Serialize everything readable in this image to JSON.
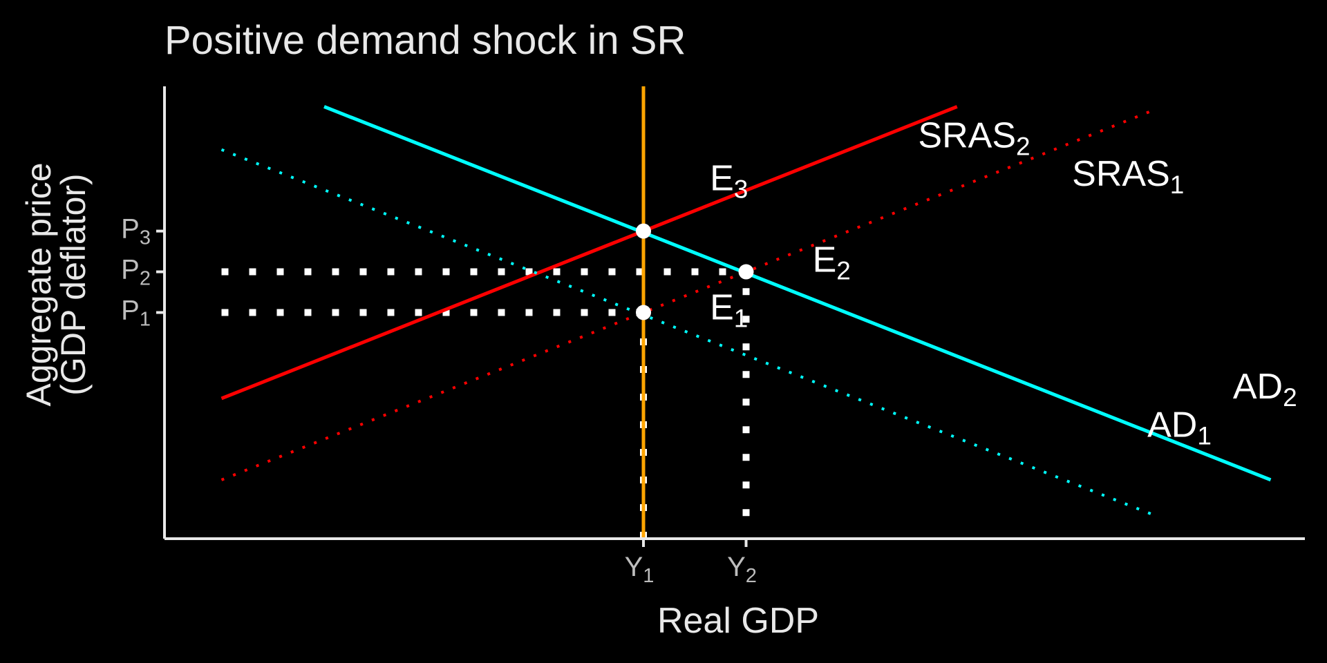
{
  "chart_data": {
    "type": "line",
    "title": "Positive demand shock in SR",
    "xlabel": "Real GDP",
    "ylabel_line1": "Aggregate price",
    "ylabel_line2": "(GDP deflator)",
    "xlim": [
      0,
      10
    ],
    "ylim": [
      0,
      10
    ],
    "grid": false,
    "legend": "none",
    "x_ticks": [
      {
        "value": 4.2,
        "base": "Y",
        "sub": "1"
      },
      {
        "value": 5.1,
        "base": "Y",
        "sub": "2"
      }
    ],
    "y_ticks": [
      {
        "value": 5.0,
        "base": "P",
        "sub": "1"
      },
      {
        "value": 5.9,
        "base": "P",
        "sub": "2"
      },
      {
        "value": 6.8,
        "base": "P",
        "sub": "3"
      }
    ],
    "series": [
      {
        "label_base": "SRAS",
        "label_sub": "1",
        "style": "dotted",
        "color": "#ff0000",
        "x": [
          0.5,
          8.7
        ],
        "y": [
          1.3,
          9.5
        ],
        "label_pos": [
          8.45,
          7.8
        ]
      },
      {
        "label_base": "SRAS",
        "label_sub": "2",
        "style": "solid",
        "color": "#ff0000",
        "x": [
          0.5,
          6.95
        ],
        "y": [
          3.1,
          9.55
        ],
        "label_pos": [
          7.1,
          8.65
        ]
      },
      {
        "label_base": "AD",
        "label_sub": "1",
        "style": "dotted",
        "color": "#00ffff",
        "x": [
          0.5,
          8.7
        ],
        "y": [
          8.6,
          0.5
        ],
        "label_pos": [
          8.9,
          2.25
        ]
      },
      {
        "label_base": "AD",
        "label_sub": "2",
        "style": "solid",
        "color": "#00ffff",
        "x": [
          1.4,
          9.7
        ],
        "y": [
          9.55,
          1.3
        ],
        "label_pos": [
          9.65,
          3.1
        ]
      },
      {
        "label_base": "",
        "label_sub": "",
        "style": "solid",
        "color": "#ffa500",
        "x": [
          4.2,
          4.2
        ],
        "y": [
          0,
          10
        ],
        "label_pos": null
      }
    ],
    "points": [
      {
        "label_base": "E",
        "label_sub": "1",
        "x": 4.2,
        "y": 5.0,
        "label_pos": [
          4.95,
          4.85
        ]
      },
      {
        "label_base": "E",
        "label_sub": "2",
        "x": 5.1,
        "y": 5.9,
        "label_pos": [
          5.85,
          5.9
        ]
      },
      {
        "label_base": "E",
        "label_sub": "3",
        "x": 4.2,
        "y": 6.8,
        "label_pos": [
          4.95,
          7.7
        ]
      }
    ],
    "guides": [
      {
        "x": [
          0.5,
          4.2
        ],
        "y": [
          5.0,
          5.0
        ]
      },
      {
        "x": [
          0.5,
          5.1
        ],
        "y": [
          5.9,
          5.9
        ]
      },
      {
        "x": [
          4.2,
          4.2
        ],
        "y": [
          0,
          5.0
        ]
      },
      {
        "x": [
          5.1,
          5.1
        ],
        "y": [
          0.5,
          5.9
        ]
      }
    ]
  }
}
